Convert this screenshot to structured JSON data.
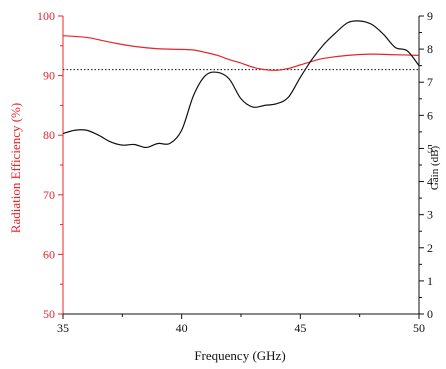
{
  "chart_data": {
    "type": "line",
    "xlabel": "Frequency (GHz)",
    "ylabel_left": "Radiation Efficiency (%)",
    "ylabel_right": "Gain (dB)",
    "xlim": [
      35,
      50
    ],
    "ylim_left": [
      50,
      100
    ],
    "ylim_right": [
      0,
      9
    ],
    "xticks": [
      35,
      40,
      45,
      50
    ],
    "yticks_left": [
      50,
      60,
      70,
      80,
      90,
      100
    ],
    "yticks_right": [
      0,
      1,
      2,
      3,
      4,
      5,
      6,
      7,
      8,
      9
    ],
    "grid": false,
    "colors": {
      "efficiency": "#e8242a",
      "gain": "#111111",
      "reference": "#111111",
      "left_axis": "#e8242a"
    },
    "series": [
      {
        "axis": "left",
        "x": [
          35,
          36,
          37,
          38,
          39,
          40,
          40.5,
          41,
          41.5,
          42,
          42.5,
          43,
          43.5,
          44,
          44.5,
          45,
          45.5,
          46,
          47,
          48,
          49,
          50
        ],
        "y": [
          96.7,
          96.4,
          95.6,
          94.9,
          94.5,
          94.4,
          94.3,
          93.9,
          93.4,
          92.7,
          92.1,
          91.4,
          91.0,
          90.9,
          91.2,
          91.8,
          92.4,
          92.9,
          93.4,
          93.6,
          93.5,
          93.4
        ]
      },
      {
        "axis": "right",
        "x": [
          35,
          35.5,
          36,
          36.5,
          37,
          37.5,
          38,
          38.5,
          39,
          39.5,
          40,
          40.5,
          41,
          41.5,
          42,
          42.5,
          43,
          43.5,
          44,
          44.5,
          45,
          45.5,
          46,
          46.5,
          47,
          47.5,
          48,
          48.5,
          49,
          49.5,
          50
        ],
        "y": [
          5.45,
          5.55,
          5.55,
          5.4,
          5.2,
          5.1,
          5.12,
          5.03,
          5.15,
          5.15,
          5.55,
          6.6,
          7.2,
          7.3,
          7.1,
          6.5,
          6.25,
          6.3,
          6.35,
          6.55,
          7.15,
          7.7,
          8.15,
          8.5,
          8.8,
          8.85,
          8.75,
          8.45,
          8.05,
          7.95,
          7.5
        ]
      }
    ],
    "reference_line": {
      "axis": "left",
      "y": 91
    }
  }
}
